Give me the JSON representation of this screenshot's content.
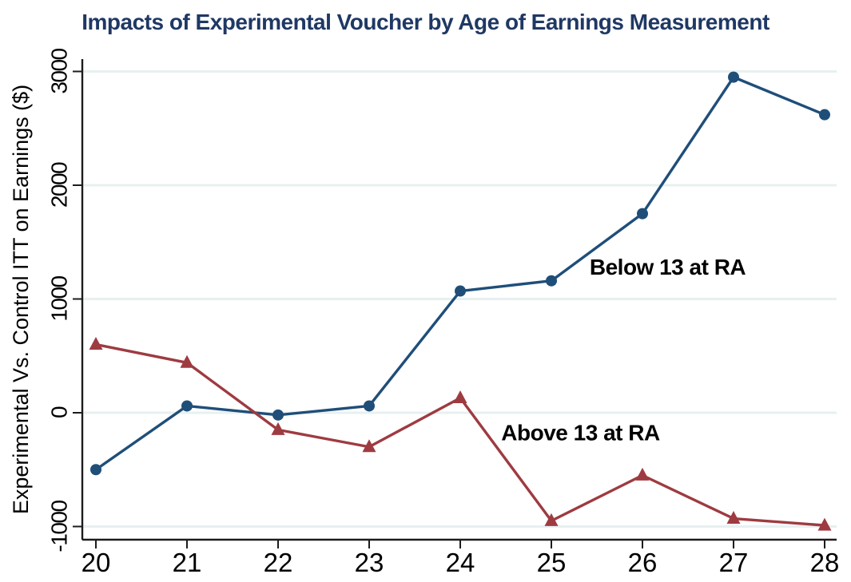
{
  "chart_data": {
    "type": "line",
    "title": "Impacts of Experimental Voucher by Age of Earnings Measurement",
    "title_color": "#1F3864",
    "xlabel": "",
    "ylabel": "Experimental Vs. Control ITT on Earnings ($)",
    "x": [
      20,
      21,
      22,
      23,
      24,
      25,
      26,
      27,
      28
    ],
    "xticks": [
      20,
      21,
      22,
      23,
      24,
      25,
      26,
      27,
      28
    ],
    "yticks": [
      -1000,
      0,
      1000,
      2000,
      3000
    ],
    "ylim": [
      -1000,
      3000
    ],
    "xlim": [
      19.85,
      28.13
    ],
    "grid": true,
    "legend_position": "inline-annotations",
    "series": [
      {
        "name": "Below 13 at RA",
        "marker": "circle",
        "color": "#1F4E79",
        "values": [
          -500,
          60,
          -20,
          60,
          1070,
          1160,
          1750,
          2950,
          2620
        ],
        "label": {
          "text": "Below 13 at RA",
          "x": 25.42,
          "y": 1280
        }
      },
      {
        "name": "Above 13 at RA",
        "marker": "triangle",
        "color": "#9E3B41",
        "values": [
          600,
          440,
          -150,
          -300,
          130,
          -950,
          -550,
          -930,
          -990
        ],
        "label": {
          "text": "Above 13 at RA",
          "x": 24.45,
          "y": -175
        }
      }
    ],
    "colors": {
      "gridline": "#E8F0F1",
      "axis": "#1c1c1c",
      "tick_label": "#000000",
      "annotation": "#000000",
      "background": "#ffffff"
    }
  }
}
